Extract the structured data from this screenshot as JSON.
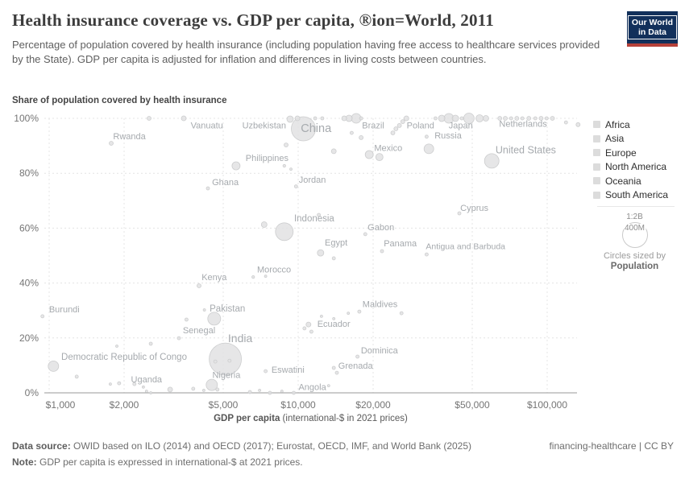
{
  "header": {
    "title": "Health insurance coverage vs. GDP per capita, ®ion=World, 2011",
    "subtitle": "Percentage of population covered by health insurance (including population having free access to healthcare services provided by the State). GDP per capita is adjusted for inflation and differences in living costs between countries.",
    "logo": {
      "line1": "Our World",
      "line2": "in Data",
      "bg_color": "#12305b",
      "stripe_color": "#b5413a"
    }
  },
  "legend": {
    "swatch_color": "#dcdcdc",
    "items": [
      {
        "label": "Africa"
      },
      {
        "label": "Asia"
      },
      {
        "label": "Europe"
      },
      {
        "label": "North America"
      },
      {
        "label": "Oceania"
      },
      {
        "label": "South America"
      }
    ],
    "size_legend": {
      "ratio_label": "1:2B",
      "circle_label": "400M",
      "caption": "Circles sized by",
      "caption_bold": "Population"
    }
  },
  "chart_data": {
    "type": "scatter",
    "title": "Health insurance coverage vs. GDP per capita, ®ion=World, 2011",
    "ylabel": "Share of population covered by health insurance",
    "xlabel_bold": "GDP per capita",
    "xlabel_note": " (international-$ in 2021 prices)",
    "x_scale": "log",
    "x_range": [
      1000,
      100000
    ],
    "y_range": [
      0,
      100
    ],
    "grid": true,
    "legend_position": "right",
    "dot_color": "#e2e2e3",
    "dot_stroke": "#cccdce",
    "label_color": "#a6aaae",
    "x_ticks": [
      {
        "label": "$1,000",
        "value": 1000
      },
      {
        "label": "$2,000",
        "value": 2000
      },
      {
        "label": "$5,000",
        "value": 5000
      },
      {
        "label": "$10,000",
        "value": 10000
      },
      {
        "label": "$20,000",
        "value": 20000
      },
      {
        "label": "$50,000",
        "value": 50000
      },
      {
        "label": "$100,000",
        "value": 100000
      }
    ],
    "y_ticks": [
      {
        "label": "0%",
        "value": 0
      },
      {
        "label": "20%",
        "value": 20
      },
      {
        "label": "40%",
        "value": 40
      },
      {
        "label": "60%",
        "value": 60
      },
      {
        "label": "80%",
        "value": 80
      },
      {
        "label": "100%",
        "value": 100
      }
    ],
    "points_format": [
      "gdp_per_capita",
      "coverage_pct",
      "radius_px",
      "country_if_labeled"
    ],
    "points": [
      [
        2520,
        100,
        2.5
      ],
      [
        3470,
        100,
        3,
        "Vanuatu"
      ],
      [
        9280,
        99.7,
        4,
        "Uzbekistan"
      ],
      [
        9930,
        100,
        3
      ],
      [
        10500,
        96.2,
        15,
        "China"
      ],
      [
        11700,
        100,
        2
      ],
      [
        12500,
        100,
        2
      ],
      [
        13900,
        88,
        3
      ],
      [
        8940,
        90.3,
        2.5
      ],
      [
        15300,
        100,
        3
      ],
      [
        16000,
        100,
        4
      ],
      [
        17100,
        100,
        6,
        "Brazil"
      ],
      [
        17900,
        100,
        2
      ],
      [
        16400,
        94.7,
        2
      ],
      [
        17900,
        93,
        2.5
      ],
      [
        19300,
        86.8,
        5,
        "Mexico"
      ],
      [
        21200,
        85.9,
        4.5
      ],
      [
        24000,
        94.7,
        2.5
      ],
      [
        24700,
        96.2,
        2.5
      ],
      [
        25500,
        97.4,
        2.5
      ],
      [
        26300,
        98.8,
        2.5
      ],
      [
        27200,
        100,
        3,
        "Poland"
      ],
      [
        32800,
        93.3,
        2
      ],
      [
        33500,
        88.9,
        6,
        "Russia"
      ],
      [
        35600,
        100,
        2
      ],
      [
        37700,
        100,
        4
      ],
      [
        40300,
        100,
        6,
        "Japan"
      ],
      [
        42800,
        100,
        4
      ],
      [
        45400,
        100,
        2
      ],
      [
        48500,
        100,
        6.5
      ],
      [
        53500,
        100,
        4.5
      ],
      [
        56700,
        100,
        3.5
      ],
      [
        59900,
        84.5,
        9,
        "United States"
      ],
      [
        64500,
        100,
        2.5
      ],
      [
        67900,
        100,
        2.5
      ],
      [
        71600,
        100,
        2
      ],
      [
        75500,
        100,
        2.5,
        "Netherlands"
      ],
      [
        79500,
        100,
        2
      ],
      [
        84400,
        100,
        2.5
      ],
      [
        89600,
        100,
        2
      ],
      [
        94500,
        100,
        2.5
      ],
      [
        99500,
        100,
        2
      ],
      [
        105000,
        100,
        2.5
      ],
      [
        119000,
        98.5,
        2
      ],
      [
        133000,
        97.7,
        2.5
      ],
      [
        1775,
        90.9,
        2.5,
        "Rwanda"
      ],
      [
        5630,
        82.7,
        5,
        "Philippines"
      ],
      [
        8800,
        82.7,
        1.7
      ],
      [
        9350,
        81.5,
        1.5
      ],
      [
        4340,
        74.5,
        2,
        "Ghana"
      ],
      [
        9800,
        75.2,
        2,
        "Jordan"
      ],
      [
        44400,
        65.4,
        2,
        "Cyprus"
      ],
      [
        7300,
        61.3,
        3.5
      ],
      [
        8800,
        58.7,
        11,
        "Indonesia"
      ],
      [
        12100,
        64.8,
        2
      ],
      [
        18600,
        57.8,
        2,
        "Gabon"
      ],
      [
        12300,
        51,
        4,
        "Egypt"
      ],
      [
        13900,
        49,
        2
      ],
      [
        21700,
        51.6,
        2,
        "Panama"
      ],
      [
        32800,
        50.4,
        2,
        "Antigua and Barbuda"
      ],
      [
        6600,
        42.2,
        1.7,
        "Morocco"
      ],
      [
        7400,
        42.5,
        1.5
      ],
      [
        4000,
        39,
        2.5,
        "Kenya"
      ],
      [
        17600,
        29.6,
        2,
        "Maldives"
      ],
      [
        26000,
        29,
        2
      ],
      [
        940,
        27.9,
        2,
        "Burundi"
      ],
      [
        4200,
        30.2,
        1.5
      ],
      [
        3560,
        26.7,
        2
      ],
      [
        4600,
        27,
        8,
        "Pakistan"
      ],
      [
        3320,
        19.9,
        2,
        "Senegal"
      ],
      [
        11000,
        24.9,
        3,
        "Ecuador"
      ],
      [
        10600,
        23.5,
        2
      ],
      [
        11300,
        22.3,
        2
      ],
      [
        12400,
        27.9,
        1.5
      ],
      [
        13900,
        27,
        1.5
      ],
      [
        15900,
        29,
        1.5
      ],
      [
        5100,
        12.3,
        20,
        "India"
      ],
      [
        4650,
        11.4,
        2
      ],
      [
        5300,
        11.7,
        2
      ],
      [
        1040,
        9.7,
        6.5,
        "Democratic Republic of Congo"
      ],
      [
        1290,
        5.9,
        2
      ],
      [
        1870,
        17,
        1.5
      ],
      [
        2560,
        17.9,
        2
      ],
      [
        17300,
        13.2,
        2,
        "Dominica"
      ],
      [
        13900,
        9.1,
        2,
        "Grenada"
      ],
      [
        14300,
        7.3,
        2
      ],
      [
        7400,
        7.9,
        2,
        "Eswatini"
      ],
      [
        13250,
        2.6,
        1.5,
        "Angola"
      ],
      [
        9600,
        0,
        2
      ],
      [
        4500,
        2.9,
        7,
        "Nigeria"
      ],
      [
        1910,
        3.5,
        2,
        "Uganda"
      ],
      [
        1760,
        3.2,
        1.5
      ],
      [
        2200,
        3.2,
        2
      ],
      [
        2390,
        2.1,
        1.5
      ],
      [
        2460,
        0.6,
        1.5
      ],
      [
        2560,
        0,
        1.5
      ],
      [
        3060,
        1.2,
        3
      ],
      [
        3790,
        1.5,
        2
      ],
      [
        4180,
        0.9,
        1.5
      ],
      [
        4740,
        1.2,
        2
      ],
      [
        6400,
        0.3,
        2
      ],
      [
        7000,
        0.9,
        1.5
      ],
      [
        7700,
        0,
        2
      ],
      [
        8600,
        0.6,
        1.5
      ]
    ],
    "country_labels": [
      {
        "t": "Vanuatu",
        "gdp": 4300,
        "cov": 97.5,
        "fs": 11
      },
      {
        "t": "Uzbekistan",
        "gdp": 7300,
        "cov": 97.5,
        "fs": 11
      },
      {
        "t": "China",
        "gdp": 11800,
        "cov": 96.5,
        "fs": 14.5
      },
      {
        "t": "Brazil",
        "gdp": 20000,
        "cov": 97.5,
        "fs": 11
      },
      {
        "t": "Poland",
        "gdp": 31000,
        "cov": 97.5,
        "fs": 11
      },
      {
        "t": "Japan",
        "gdp": 45000,
        "cov": 97.5,
        "fs": 11
      },
      {
        "t": "Netherlands",
        "gdp": 80000,
        "cov": 98,
        "fs": 11
      },
      {
        "t": "Rwanda",
        "gdp": 2100,
        "cov": 93.5,
        "fs": 11
      },
      {
        "t": "Mexico",
        "gdp": 23000,
        "cov": 89.3,
        "fs": 11
      },
      {
        "t": "Russia",
        "gdp": 40000,
        "cov": 93.8,
        "fs": 11
      },
      {
        "t": "United States",
        "gdp": 82000,
        "cov": 88.5,
        "fs": 12.5
      },
      {
        "t": "Philippines",
        "gdp": 7500,
        "cov": 85.6,
        "fs": 11
      },
      {
        "t": "Ghana",
        "gdp": 5100,
        "cov": 76.8,
        "fs": 11
      },
      {
        "t": "Jordan",
        "gdp": 11400,
        "cov": 77.7,
        "fs": 11
      },
      {
        "t": "Cyprus",
        "gdp": 51000,
        "cov": 67.4,
        "fs": 11
      },
      {
        "t": "Indonesia",
        "gdp": 11600,
        "cov": 63.6,
        "fs": 11.5
      },
      {
        "t": "Gabon",
        "gdp": 21500,
        "cov": 60.4,
        "fs": 11
      },
      {
        "t": "Egypt",
        "gdp": 14200,
        "cov": 54.8,
        "fs": 11
      },
      {
        "t": "Panama",
        "gdp": 25700,
        "cov": 54.5,
        "fs": 11
      },
      {
        "t": "Antigua and Barbuda",
        "gdp": 47000,
        "cov": 53.4,
        "fs": 10.5
      },
      {
        "t": "Morocco",
        "gdp": 8000,
        "cov": 44.9,
        "fs": 11
      },
      {
        "t": "Kenya",
        "gdp": 4600,
        "cov": 42.2,
        "fs": 11
      },
      {
        "t": "Maldives",
        "gdp": 21300,
        "cov": 32.3,
        "fs": 11
      },
      {
        "t": "Burundi",
        "gdp": 1150,
        "cov": 30.5,
        "fs": 11
      },
      {
        "t": "Pakistan",
        "gdp": 5200,
        "cov": 30.8,
        "fs": 11.5
      },
      {
        "t": "Senegal",
        "gdp": 4000,
        "cov": 22.9,
        "fs": 11
      },
      {
        "t": "India",
        "gdp": 5850,
        "cov": 19.9,
        "fs": 14
      },
      {
        "t": "Ecuador",
        "gdp": 13900,
        "cov": 25.2,
        "fs": 11
      },
      {
        "t": "Democratic Republic of Congo",
        "gdp": 2000,
        "cov": 13.2,
        "fs": 11.5
      },
      {
        "t": "Uganda",
        "gdp": 2460,
        "cov": 5,
        "fs": 11
      },
      {
        "t": "Nigeria",
        "gdp": 5150,
        "cov": 6.5,
        "fs": 11
      },
      {
        "t": "Eswatini",
        "gdp": 9100,
        "cov": 8.5,
        "fs": 11
      },
      {
        "t": "Dominica",
        "gdp": 21200,
        "cov": 15.5,
        "fs": 11
      },
      {
        "t": "Grenada",
        "gdp": 17000,
        "cov": 10,
        "fs": 11
      },
      {
        "t": "Angola",
        "gdp": 11400,
        "cov": 2.2,
        "fs": 11
      }
    ]
  },
  "footer": {
    "source_bold": "Data source:",
    "source_text": " OWID based on ILO (2014) and OECD (2017); Eurostat, OECD, IMF, and World Bank (2025)",
    "license": "financing-healthcare | CC BY",
    "note_bold": "Note:",
    "note_text": " GDP per capita is expressed in international-$ at 2021 prices."
  }
}
